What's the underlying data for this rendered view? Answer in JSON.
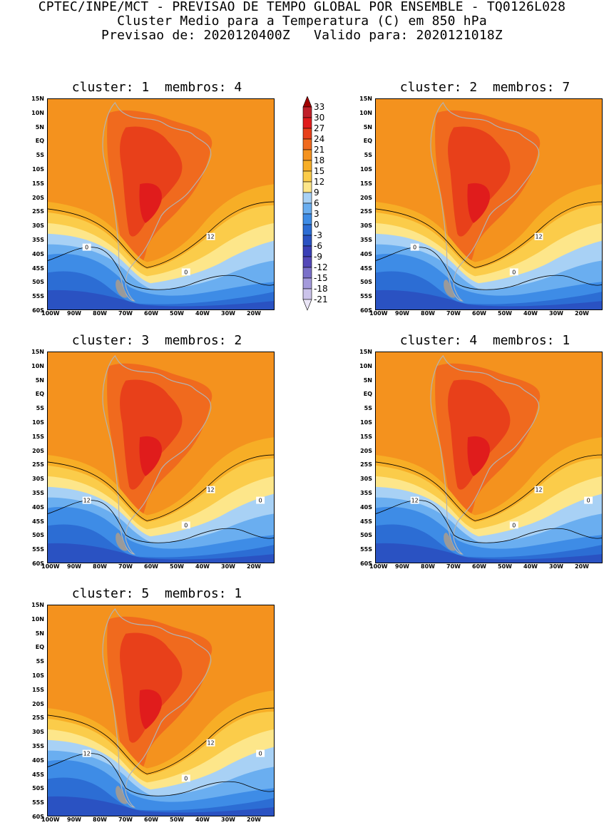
{
  "header": {
    "line1": "CPTEC/INPE/MCT - PREVISAO DE TEMPO GLOBAL POR ENSEMBLE - TQ0126L028",
    "line2": "Cluster Medio para a Temperatura (C) em 850 hPa",
    "line3": "Previsao de: 2020120400Z   Valido para: 2020121018Z"
  },
  "panels": [
    {
      "title": "cluster: 1  membros: 4",
      "contours": [
        "12",
        "0",
        "0"
      ]
    },
    {
      "title": "cluster: 2  membros: 7",
      "contours": [
        "12",
        "0",
        "0"
      ]
    },
    {
      "title": "cluster: 3  membros: 2",
      "contours": [
        "12",
        "12",
        "0",
        "0"
      ]
    },
    {
      "title": "cluster: 4  membros: 1",
      "contours": [
        "12",
        "12",
        "0",
        "0"
      ]
    },
    {
      "title": "cluster: 5  membros: 1",
      "contours": [
        "12",
        "12",
        "0",
        "0"
      ]
    }
  ],
  "axes": {
    "lat_labels": [
      "15N",
      "10N",
      "5N",
      "EQ",
      "5S",
      "10S",
      "15S",
      "20S",
      "25S",
      "30S",
      "35S",
      "40S",
      "45S",
      "50S",
      "55S",
      "60S"
    ],
    "lon_labels": [
      "100W",
      "90W",
      "80W",
      "70W",
      "60W",
      "50W",
      "40W",
      "30W",
      "20W"
    ]
  },
  "legend": {
    "levels": [
      "33",
      "30",
      "27",
      "24",
      "21",
      "18",
      "15",
      "12",
      "9",
      "6",
      "3",
      "0",
      "-3",
      "-6",
      "-9",
      "-12",
      "-15",
      "-18",
      "-21"
    ],
    "colors": [
      "#a00000",
      "#c0202a",
      "#e01c1c",
      "#e8401a",
      "#f06a1e",
      "#f4921e",
      "#f7ae26",
      "#fbcc4a",
      "#fde68a",
      "#a8d1f5",
      "#6aaef0",
      "#3e8ce6",
      "#2c6dd4",
      "#2a52c2",
      "#3a3fb6",
      "#5448b8",
      "#7a70c9",
      "#a49adb",
      "#cbc3ea",
      "#ebe6f7"
    ]
  },
  "palette": {
    "coast": "#b3b3b3",
    "contour": "#000000"
  }
}
